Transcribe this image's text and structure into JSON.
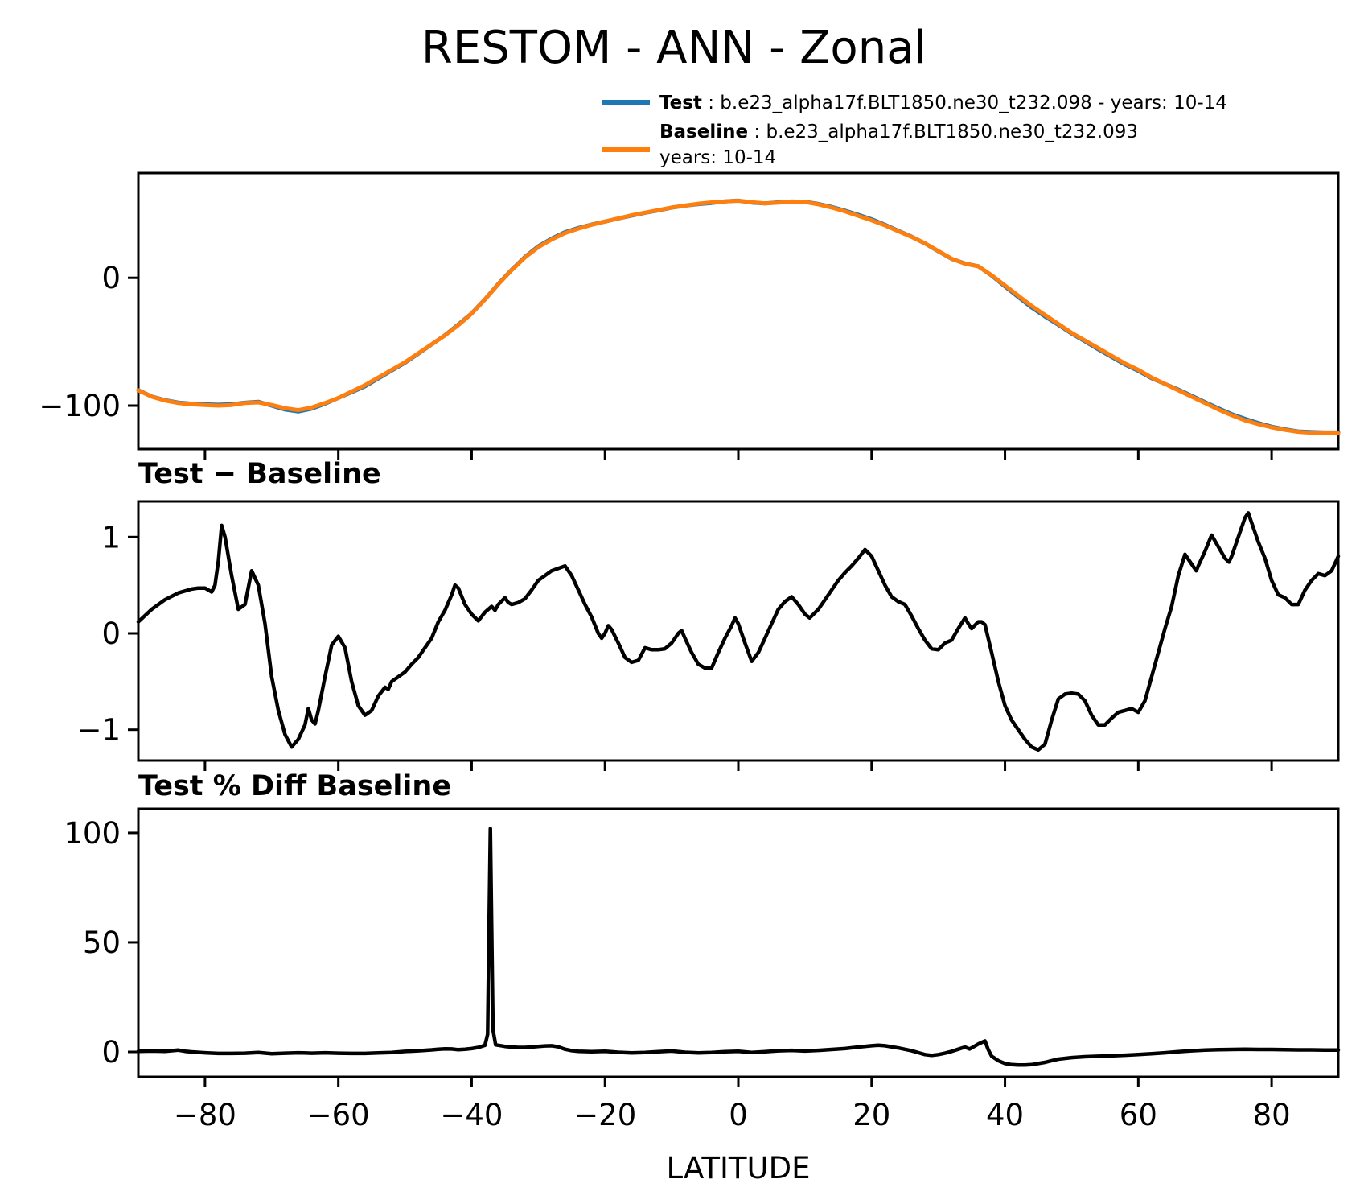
{
  "figure": {
    "title": "RESTOM - ANN - Zonal",
    "xlabel": "LATITUDE"
  },
  "legend": {
    "test_label": "Test",
    "test_desc": " : b.e23_alpha17f.BLT1850.ne30_t232.098 - years: 10-14",
    "baseline_label": "Baseline",
    "baseline_desc": " : b.e23_alpha17f.BLT1850.ne30_t232.093",
    "baseline_desc2": "years: 10-14",
    "test_color": "#1f77b4",
    "baseline_color": "#ff7f0e"
  },
  "axes": {
    "xticks": [
      -80,
      -60,
      -40,
      -20,
      0,
      20,
      40,
      60,
      80
    ],
    "xtick_labels": [
      "−80",
      "−60",
      "−40",
      "−20",
      "0",
      "20",
      "40",
      "60",
      "80"
    ],
    "xlim": [
      -90,
      90
    ]
  },
  "chart_data": [
    {
      "type": "line",
      "title": "RESTOM - ANN - Zonal",
      "xlabel": "LATITUDE",
      "xlim": [
        -90,
        90
      ],
      "ylim": [
        -134,
        82
      ],
      "yticks": [
        0,
        -100
      ],
      "ytick_labels": [
        "0",
        "−100"
      ],
      "x_start": -90,
      "x_step": 2,
      "series": [
        {
          "name": "Test",
          "color": "#1f77b4",
          "values": [
            -87.9,
            -92.8,
            -95.7,
            -97.6,
            -98.5,
            -99.0,
            -99.3,
            -98.9,
            -97.7,
            -97.0,
            -100.0,
            -103.1,
            -104.6,
            -102.4,
            -98.5,
            -94.0,
            -89.5,
            -84.9,
            -78.7,
            -72.5,
            -66.4,
            -59.3,
            -52.1,
            -44.8,
            -36.5,
            -27.8,
            -16.8,
            -4.7,
            6.3,
            16.4,
            24.6,
            30.7,
            35.7,
            39.0,
            41.7,
            44.0,
            46.4,
            48.7,
            50.9,
            52.8,
            54.9,
            56.5,
            57.7,
            58.6,
            59.8,
            60.4,
            58.9,
            58.2,
            59.1,
            59.7,
            59.5,
            57.8,
            55.5,
            52.6,
            49.3,
            45.8,
            41.5,
            36.8,
            32.2,
            26.9,
            20.8,
            14.9,
            11.2,
            9.1,
            1.8,
            -6.8,
            -15.0,
            -23.2,
            -30.2,
            -36.7,
            -43.6,
            -49.7,
            -56.0,
            -61.9,
            -67.8,
            -72.8,
            -78.5,
            -83.0,
            -87.4,
            -92.3,
            -97.2,
            -102.1,
            -106.7,
            -110.3,
            -113.6,
            -116.5,
            -118.6,
            -120.2,
            -120.7,
            -121.0,
            -121.0
          ]
        },
        {
          "name": "Baseline",
          "color": "#ff7f0e",
          "values": [
            -88,
            -93,
            -96,
            -98,
            -99,
            -99.5,
            -100,
            -99.5,
            -98,
            -97.5,
            -99.5,
            -102,
            -103.5,
            -101.5,
            -98,
            -94,
            -89,
            -84,
            -78,
            -72,
            -66,
            -59,
            -52,
            -45,
            -37,
            -28,
            -17,
            -5,
            6,
            16,
            24,
            30,
            35,
            38.5,
            41.5,
            44,
            46.5,
            49,
            51,
            53,
            55,
            56.5,
            58,
            59,
            59.8,
            60.3,
            59.2,
            58.2,
            58.8,
            59.3,
            59.3,
            57.5,
            55,
            52,
            48.5,
            45,
            41,
            36.5,
            32,
            27,
            21,
            15,
            11,
            9,
            2,
            -6,
            -14,
            -22,
            -29,
            -36,
            -43,
            -49,
            -55,
            -61,
            -67,
            -72,
            -78,
            -83,
            -88,
            -93,
            -98,
            -103,
            -107.5,
            -111.5,
            -114.5,
            -117,
            -119,
            -120.5,
            -121.2,
            -121.6,
            -121.8
          ]
        }
      ]
    },
    {
      "type": "line",
      "title": "Test − Baseline",
      "color": "#000000",
      "xlim": [
        -90,
        90
      ],
      "ylim": [
        -1.32,
        1.37
      ],
      "yticks": [
        1,
        0,
        -1
      ],
      "ytick_labels": [
        "1",
        "0",
        "−1"
      ],
      "x": [
        -90,
        -88,
        -86,
        -84,
        -82,
        -81,
        -80,
        -79,
        -78.5,
        -78,
        -77.5,
        -77,
        -76,
        -75,
        -74,
        -73,
        -72,
        -71,
        -70,
        -69,
        -68,
        -67,
        -66,
        -65,
        -64.5,
        -64,
        -63.5,
        -63,
        -62,
        -61,
        -60,
        -59,
        -58,
        -57,
        -56,
        -55,
        -54,
        -53,
        -52.5,
        -52,
        -51,
        -50,
        -49,
        -48,
        -47,
        -46,
        -45,
        -44,
        -43,
        -42.5,
        -42,
        -41,
        -40,
        -39,
        -38,
        -37,
        -36.5,
        -36,
        -35,
        -34.5,
        -34,
        -33,
        -32,
        -31,
        -30,
        -28,
        -26,
        -25,
        -24,
        -23,
        -22,
        -21,
        -20.5,
        -20,
        -19.5,
        -19,
        -18,
        -17,
        -16,
        -15,
        -14,
        -13,
        -12,
        -11,
        -10,
        -9,
        -8.5,
        -8,
        -7,
        -6,
        -5,
        -4,
        -3,
        -2,
        -1,
        -0.5,
        0,
        1,
        2,
        3,
        4,
        5,
        6,
        7,
        8,
        9,
        10,
        10.7,
        11,
        12,
        13,
        14,
        15,
        16,
        17,
        18,
        19,
        20,
        21,
        22,
        23,
        24,
        25,
        26,
        27,
        28,
        29,
        30,
        31,
        32,
        33,
        34,
        34.5,
        35,
        36,
        36.5,
        37,
        38,
        39,
        40,
        41,
        42,
        43,
        44,
        45,
        46,
        47,
        48,
        49,
        50,
        51,
        52,
        53,
        54,
        55,
        56,
        57,
        58,
        59,
        60,
        61,
        62,
        63,
        64,
        65,
        66,
        67,
        68,
        68.7,
        69,
        70,
        71,
        72,
        73,
        73.6,
        74,
        75,
        76,
        76.5,
        77,
        78,
        79,
        80,
        81,
        82,
        83,
        84,
        85,
        86,
        87,
        88,
        89,
        90
      ],
      "y": [
        0.12,
        0.25,
        0.35,
        0.42,
        0.46,
        0.47,
        0.47,
        0.43,
        0.5,
        0.75,
        1.12,
        1.0,
        0.6,
        0.25,
        0.3,
        0.65,
        0.5,
        0.1,
        -0.45,
        -0.8,
        -1.05,
        -1.18,
        -1.1,
        -0.95,
        -0.78,
        -0.9,
        -0.94,
        -0.8,
        -0.45,
        -0.12,
        -0.03,
        -0.15,
        -0.5,
        -0.75,
        -0.85,
        -0.8,
        -0.65,
        -0.56,
        -0.58,
        -0.5,
        -0.45,
        -0.4,
        -0.32,
        -0.25,
        -0.15,
        -0.05,
        0.12,
        0.24,
        0.4,
        0.5,
        0.47,
        0.3,
        0.2,
        0.13,
        0.22,
        0.28,
        0.24,
        0.3,
        0.37,
        0.32,
        0.3,
        0.32,
        0.36,
        0.45,
        0.55,
        0.65,
        0.7,
        0.6,
        0.45,
        0.3,
        0.17,
        0.0,
        -0.05,
        0.0,
        0.08,
        0.04,
        -0.1,
        -0.25,
        -0.3,
        -0.28,
        -0.15,
        -0.17,
        -0.17,
        -0.16,
        -0.1,
        0.0,
        0.03,
        -0.05,
        -0.2,
        -0.32,
        -0.36,
        -0.36,
        -0.2,
        -0.05,
        0.08,
        0.16,
        0.1,
        -0.1,
        -0.29,
        -0.2,
        -0.05,
        0.1,
        0.25,
        0.33,
        0.38,
        0.3,
        0.2,
        0.16,
        0.18,
        0.25,
        0.35,
        0.45,
        0.55,
        0.63,
        0.7,
        0.78,
        0.87,
        0.8,
        0.65,
        0.5,
        0.38,
        0.33,
        0.3,
        0.18,
        0.05,
        -0.07,
        -0.16,
        -0.17,
        -0.1,
        -0.07,
        0.05,
        0.16,
        0.1,
        0.05,
        0.12,
        0.12,
        0.09,
        -0.2,
        -0.5,
        -0.75,
        -0.9,
        -1.0,
        -1.1,
        -1.18,
        -1.21,
        -1.15,
        -0.9,
        -0.68,
        -0.63,
        -0.62,
        -0.63,
        -0.7,
        -0.85,
        -0.95,
        -0.95,
        -0.88,
        -0.82,
        -0.8,
        -0.78,
        -0.82,
        -0.7,
        -0.45,
        -0.2,
        0.05,
        0.28,
        0.6,
        0.82,
        0.72,
        0.65,
        0.7,
        0.85,
        1.02,
        0.9,
        0.78,
        0.74,
        0.8,
        1.0,
        1.2,
        1.25,
        1.15,
        0.95,
        0.78,
        0.55,
        0.4,
        0.37,
        0.3,
        0.3,
        0.45,
        0.55,
        0.62,
        0.6,
        0.65,
        0.8
      ]
    },
    {
      "type": "line",
      "title": "Test % Diff Baseline",
      "color": "#000000",
      "xlim": [
        -90,
        90
      ],
      "ylim": [
        -11.4,
        111
      ],
      "yticks": [
        100,
        50,
        0
      ],
      "ytick_labels": [
        "100",
        "50",
        "0"
      ],
      "x": [
        -90,
        -88,
        -86,
        -84,
        -83,
        -82,
        -80,
        -78,
        -76,
        -74,
        -72,
        -70,
        -68,
        -66,
        -64,
        -62,
        -60,
        -58,
        -56,
        -54,
        -52,
        -50,
        -48,
        -46,
        -45,
        -44,
        -43,
        -42,
        -41,
        -40,
        -39,
        -38,
        -37.6,
        -37.2,
        -36.8,
        -36.4,
        -36,
        -35,
        -34,
        -33,
        -32,
        -31,
        -30,
        -29,
        -28,
        -27,
        -26,
        -25,
        -24,
        -22,
        -20,
        -18,
        -16,
        -14,
        -12,
        -10,
        -8,
        -6,
        -4,
        -2,
        0,
        2,
        4,
        6,
        8,
        10,
        12,
        14,
        16,
        18,
        20,
        21,
        22,
        24,
        26,
        28,
        29,
        30,
        31,
        32,
        33,
        34,
        34.7,
        35.4,
        36,
        37,
        37.5,
        38,
        39,
        40,
        41,
        42,
        43,
        44,
        45,
        46,
        47,
        48,
        50,
        52,
        54,
        56,
        58,
        60,
        62,
        64,
        66,
        68,
        70,
        72,
        74,
        76,
        78,
        80,
        82,
        84,
        86,
        88,
        90
      ],
      "y": [
        0.3,
        0.4,
        0.3,
        0.8,
        0.3,
        0.0,
        -0.4,
        -0.7,
        -0.7,
        -0.6,
        -0.3,
        -0.8,
        -0.6,
        -0.4,
        -0.6,
        -0.4,
        -0.6,
        -0.7,
        -0.7,
        -0.5,
        -0.3,
        0.2,
        0.5,
        0.9,
        1.2,
        1.4,
        1.3,
        1.0,
        1.2,
        1.5,
        2.0,
        3.0,
        8.0,
        102,
        10,
        3.2,
        3.0,
        2.5,
        2.2,
        2.0,
        2.0,
        2.2,
        2.5,
        2.7,
        2.8,
        2.3,
        1.2,
        0.6,
        0.3,
        0.1,
        0.3,
        -0.2,
        -0.5,
        -0.3,
        0.1,
        0.4,
        -0.2,
        -0.5,
        -0.3,
        0.1,
        0.3,
        -0.3,
        0.1,
        0.5,
        0.7,
        0.4,
        0.7,
        1.1,
        1.5,
        2.2,
        2.8,
        3.0,
        2.8,
        1.8,
        0.5,
        -1.2,
        -1.6,
        -1.2,
        -0.6,
        0.2,
        1.2,
        2.2,
        1.3,
        2.5,
        3.6,
        5.0,
        1.0,
        -2.0,
        -4.0,
        -5.3,
        -5.8,
        -6.0,
        -6.0,
        -5.8,
        -5.3,
        -4.8,
        -4.0,
        -3.3,
        -2.6,
        -2.2,
        -2.0,
        -1.8,
        -1.5,
        -1.2,
        -0.8,
        -0.4,
        0.1,
        0.5,
        0.8,
        1.0,
        1.1,
        1.2,
        1.1,
        1.1,
        1.0,
        0.9,
        0.9,
        0.8,
        0.8
      ]
    }
  ]
}
